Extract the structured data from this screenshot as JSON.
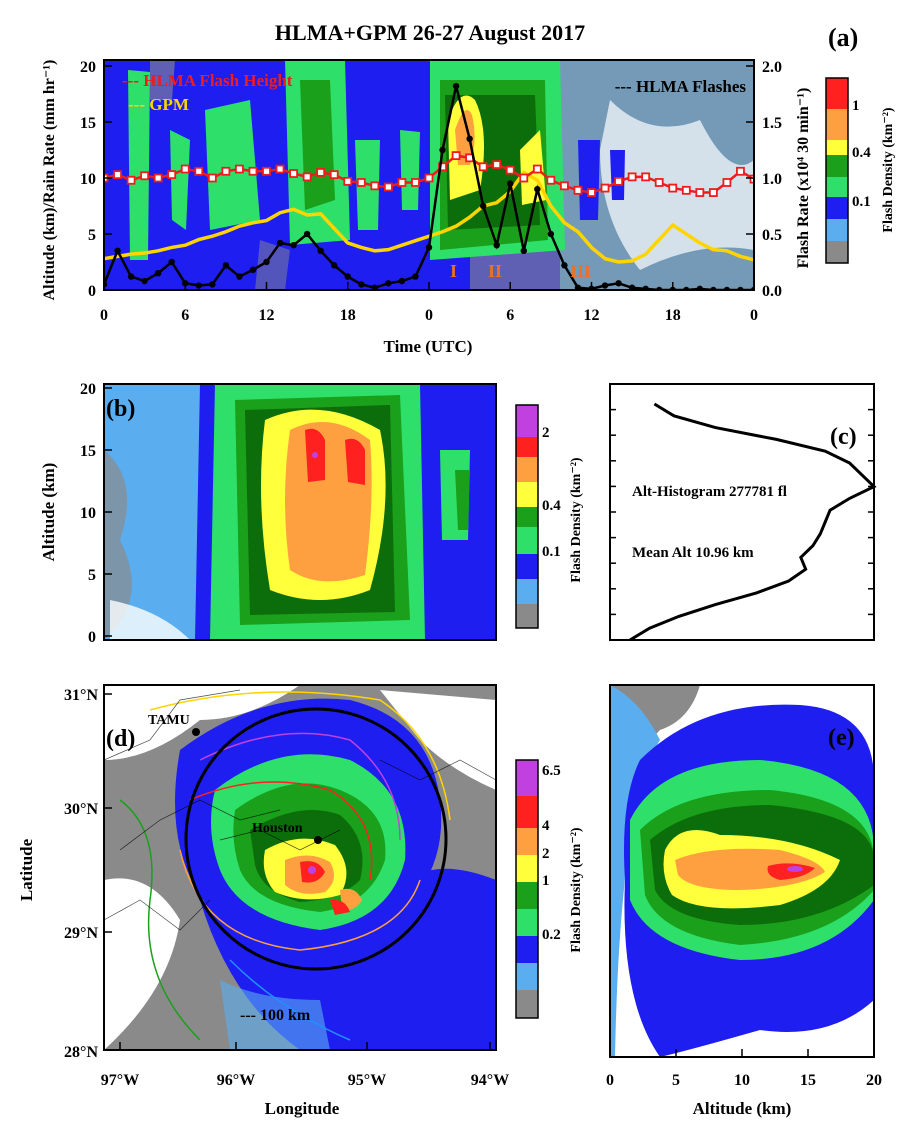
{
  "title": "HLMA+GPM 26-27 August 2017",
  "colors": {
    "scale": [
      "#8a8a8a",
      "#5aaef0",
      "#1e1ef0",
      "#2ee06a",
      "#1aa01a",
      "#0b6e0b",
      "#ffff3c",
      "#ffa040",
      "#ff2020",
      "#c040e0"
    ],
    "flash_height": "#ee1c1c",
    "gpm": "#ffd400",
    "flashes": "#000000",
    "roman": "#f07020",
    "circle": "#000000"
  },
  "panel_a": {
    "letter": "(a)",
    "xlabel": "Time (UTC)",
    "ylabel_left": "Altitude (km)/Rain Rate (mm hr⁻¹)",
    "ylabel_right": "Flash Rate (x10⁴ 30 min⁻¹)",
    "legend": {
      "flash_height": "--- HLMA Flash Height",
      "gpm": "--- GPM",
      "flashes": "--- HLMA Flashes"
    },
    "periods": [
      "I",
      "II",
      "III"
    ],
    "colorbar_label": "Flash Density (km⁻²)",
    "colorbar_ticks": [
      "1",
      "0.4",
      "0.1"
    ]
  },
  "panel_b": {
    "letter": "(b)",
    "ylabel": "Altitude (km)",
    "colorbar_label": "Flash Density (km⁻²)",
    "colorbar_ticks": [
      "2",
      "0.4",
      "0.1"
    ]
  },
  "panel_c": {
    "letter": "(c)",
    "text_hist": "Alt-Histogram   277781 fl",
    "text_mean": "Mean Alt 10.96 km"
  },
  "panel_d": {
    "letter": "(d)",
    "xlabel": "Longitude",
    "ylabel": "Latitude",
    "xticks": [
      "97°W",
      "96°W",
      "95°W",
      "94°W"
    ],
    "yticks": [
      "31°N",
      "30°N",
      "29°N",
      "28°N"
    ],
    "place_tamu": "TAMU",
    "place_houston": "Houston",
    "range_label": "--- 100 km",
    "colorbar_label": "Flash Density (km⁻²)",
    "colorbar_ticks": [
      "6.5",
      "4",
      "2",
      "1",
      "0.2"
    ]
  },
  "panel_e": {
    "letter": "(e)",
    "xlabel": "Altitude (km)",
    "xticks": [
      "0",
      "5",
      "10",
      "15",
      "20"
    ]
  },
  "chart_data": [
    {
      "type": "line",
      "panel": "a",
      "title": "HLMA+GPM 26-27 August 2017",
      "x_ticklabels": [
        "0",
        "6",
        "12",
        "18",
        "0",
        "6",
        "12",
        "18",
        "0"
      ],
      "x_hours": [
        0,
        1,
        2,
        3,
        4,
        5,
        6,
        7,
        8,
        9,
        10,
        11,
        12,
        13,
        14,
        15,
        16,
        17,
        18,
        19,
        20,
        21,
        22,
        23,
        24,
        25,
        26,
        27,
        28,
        29,
        30,
        31,
        32,
        33,
        34,
        35,
        36,
        37,
        38,
        39,
        40,
        41,
        42,
        43,
        44,
        45,
        46,
        47,
        48
      ],
      "xlim": [
        0,
        48
      ],
      "ylim_left": [
        0,
        20
      ],
      "ylim_right": [
        0,
        2.0
      ],
      "yticks_left": [
        0,
        5,
        10,
        15,
        20
      ],
      "yticks_right": [
        0.0,
        0.5,
        1.0,
        1.5,
        2.0
      ],
      "series": [
        {
          "name": "HLMA Flash Height",
          "axis": "left",
          "values": [
            10.0,
            10.3,
            9.8,
            10.2,
            10.0,
            10.3,
            10.8,
            10.6,
            10.0,
            10.6,
            10.8,
            10.6,
            10.6,
            10.8,
            10.4,
            10.1,
            10.5,
            10.3,
            9.7,
            9.6,
            9.3,
            9.2,
            9.6,
            9.6,
            10.0,
            11.0,
            12.0,
            11.8,
            11.0,
            11.2,
            10.7,
            10.0,
            10.8,
            9.8,
            9.3,
            8.9,
            8.7,
            9.1,
            9.7,
            10.1,
            10.1,
            9.6,
            9.1,
            8.9,
            8.7,
            8.7,
            9.6,
            10.6,
            9.9
          ]
        },
        {
          "name": "GPM",
          "axis": "left",
          "values": [
            2.8,
            3.0,
            3.2,
            3.3,
            3.5,
            3.8,
            4.0,
            4.5,
            4.8,
            5.2,
            5.7,
            6.0,
            6.2,
            6.9,
            7.2,
            6.7,
            6.8,
            5.5,
            4.2,
            3.8,
            3.5,
            3.6,
            4.0,
            4.4,
            4.8,
            5.2,
            5.7,
            6.5,
            7.5,
            7.8,
            8.8,
            10.5,
            9.8,
            7.5,
            6.0,
            5.2,
            3.8,
            2.8,
            2.5,
            2.6,
            3.2,
            4.5,
            5.8,
            5.0,
            4.2,
            3.6,
            3.5,
            3.0,
            2.7
          ]
        },
        {
          "name": "HLMA Flashes",
          "axis": "right",
          "values": [
            0.05,
            0.35,
            0.12,
            0.08,
            0.15,
            0.25,
            0.06,
            0.04,
            0.05,
            0.22,
            0.12,
            0.18,
            0.25,
            0.42,
            0.4,
            0.5,
            0.35,
            0.22,
            0.12,
            0.05,
            0.02,
            0.06,
            0.08,
            0.12,
            0.38,
            1.25,
            1.82,
            1.35,
            0.75,
            0.4,
            0.95,
            0.35,
            0.9,
            0.5,
            0.22,
            0.02,
            0.01,
            0.04,
            0.06,
            0.02,
            0.01,
            0.0,
            0.0,
            0.0,
            0.01,
            0.0,
            0.0,
            0.0,
            0.0
          ]
        }
      ]
    },
    {
      "type": "line",
      "panel": "c",
      "title": "Alt-Histogram",
      "y_altitude_km": [
        0,
        1,
        2,
        3,
        4,
        5,
        6,
        7,
        8,
        9,
        10,
        11,
        12,
        13,
        14,
        15,
        16,
        17,
        18,
        19,
        20
      ],
      "values": [
        0.0,
        0.08,
        0.2,
        0.35,
        0.52,
        0.65,
        0.72,
        0.7,
        0.75,
        0.78,
        0.8,
        0.82,
        0.9,
        1.0,
        0.95,
        0.9,
        0.8,
        0.6,
        0.35,
        0.18,
        0.1
      ],
      "ylim": [
        0,
        20
      ]
    }
  ]
}
